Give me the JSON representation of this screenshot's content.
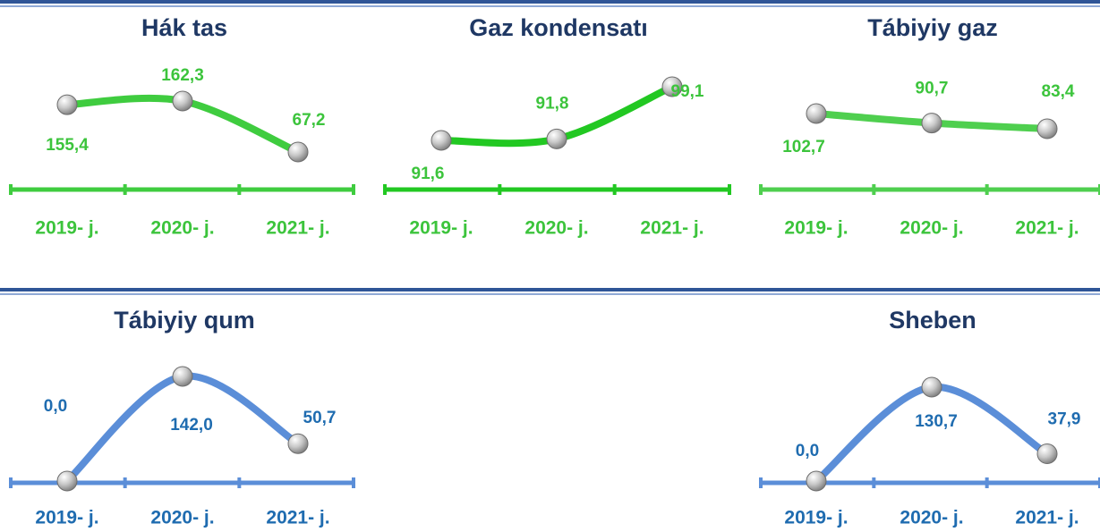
{
  "chart_data": [
    {
      "type": "line",
      "title": "Hák tas",
      "categories": [
        "2019- j.",
        "2020- j.",
        "2021- j."
      ],
      "values": [
        155.4,
        162.3,
        67.2
      ],
      "value_labels": [
        "155,4",
        "162,3",
        "67,2"
      ],
      "color": "#3fcc3f",
      "label_color": "#3cc43c"
    },
    {
      "type": "line",
      "title": "Gaz kondensatı",
      "categories": [
        "2019- j.",
        "2020- j.",
        "2021- j."
      ],
      "values": [
        91.6,
        91.8,
        99.1
      ],
      "value_labels": [
        "91,6",
        "91,8",
        "99,1"
      ],
      "color": "#22c822",
      "label_color": "#3cc43c"
    },
    {
      "type": "line",
      "title": "Tábiyiy gaz",
      "categories": [
        "2019- j.",
        "2020- j.",
        "2021- j."
      ],
      "values": [
        102.7,
        90.7,
        83.4
      ],
      "value_labels": [
        "102,7",
        "90,7",
        "83,4"
      ],
      "color": "#4fcf4f",
      "label_color": "#3cc43c"
    },
    {
      "type": "line",
      "title": "Tábiyiy qum",
      "categories": [
        "2019- j.",
        "2020- j.",
        "2021- j."
      ],
      "values": [
        0.0,
        142.0,
        50.7
      ],
      "value_labels": [
        "0,0",
        "142,0",
        "50,7"
      ],
      "color": "#5b8ed8",
      "label_color": "#1f6cb0"
    },
    {
      "type": "line",
      "title": "Sheben",
      "categories": [
        "2019- j.",
        "2020- j.",
        "2021- j."
      ],
      "values": [
        0.0,
        130.7,
        37.9
      ],
      "value_labels": [
        "0,0",
        "130,7",
        "37,9"
      ],
      "color": "#5b8ed8",
      "label_color": "#1f6cb0"
    }
  ]
}
